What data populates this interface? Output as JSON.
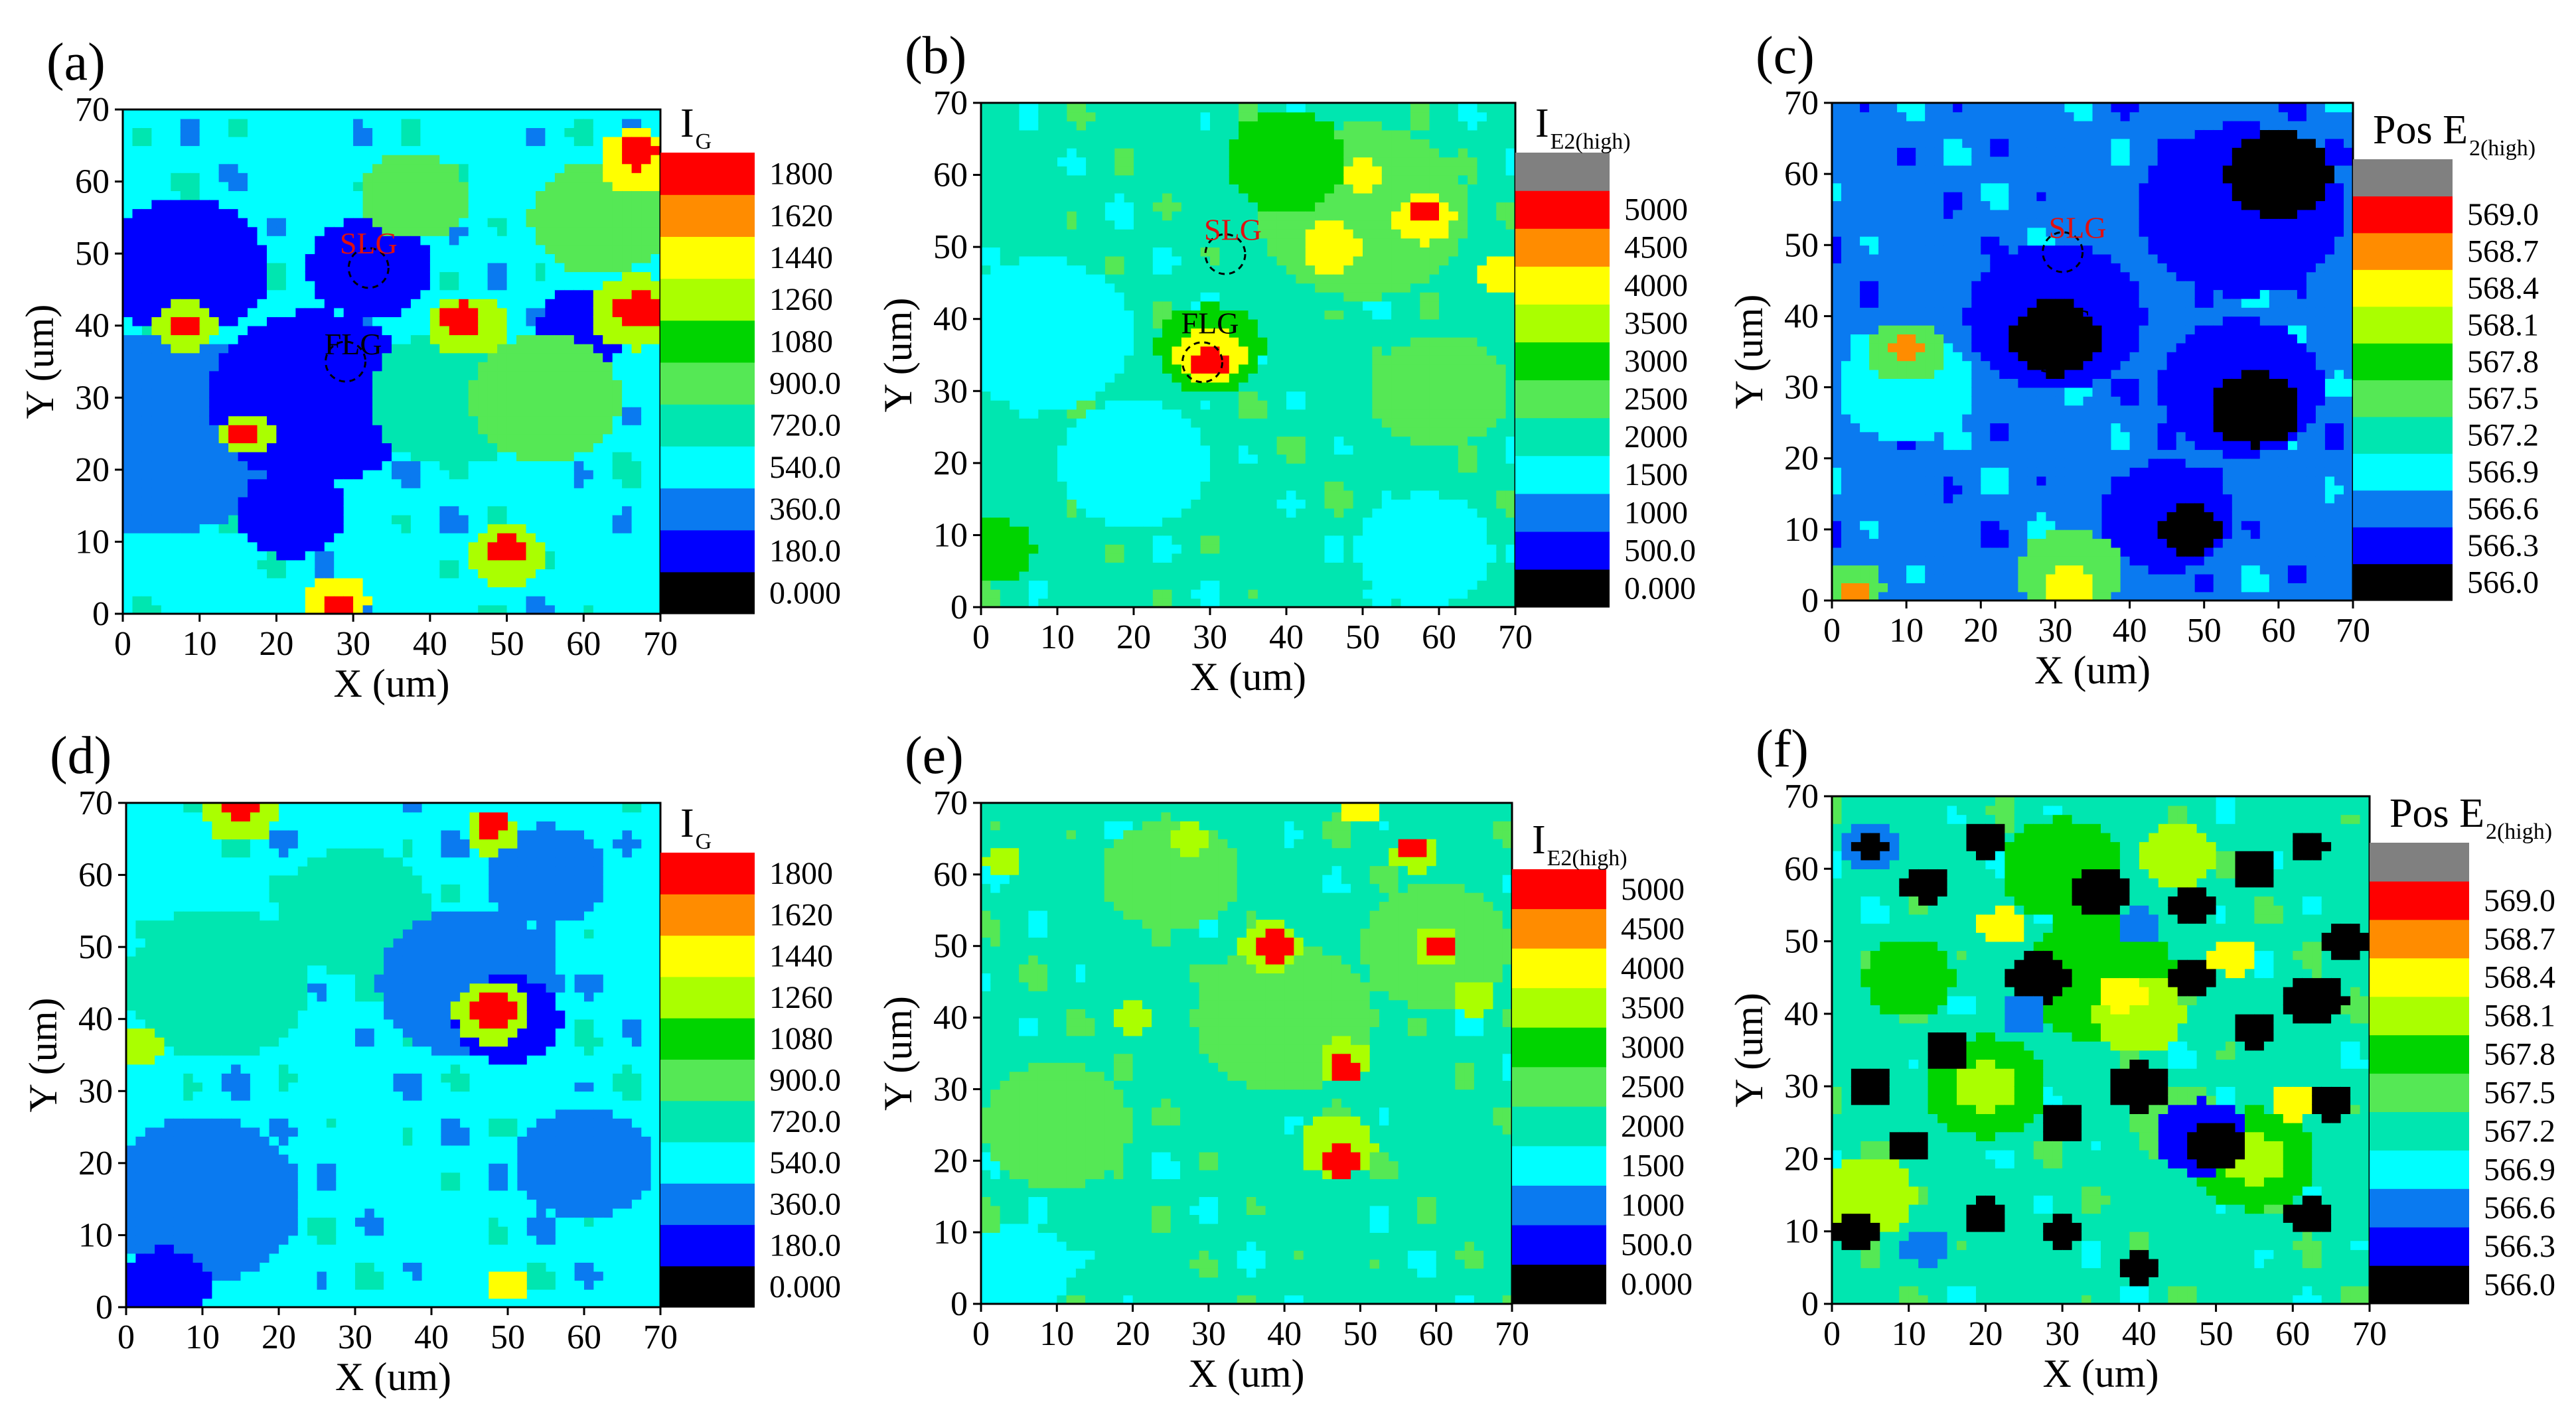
{
  "chart_data": [
    {
      "id": "a",
      "letter": "(a)",
      "type": "heatmap",
      "title_main": "I",
      "title_sub": "G",
      "xlabel": "X (um)",
      "ylabel": "Y (um)",
      "xlim": [
        0,
        70
      ],
      "ylim": [
        0,
        70
      ],
      "x_ticks": [
        "0",
        "10",
        "20",
        "30",
        "40",
        "50",
        "60",
        "70"
      ],
      "y_ticks": [
        "0",
        "10",
        "20",
        "30",
        "40",
        "50",
        "60",
        "70"
      ],
      "colorbar_levels": [
        "0.000",
        "180.0",
        "360.0",
        "540.0",
        "720.0",
        "900.0",
        "1080",
        "1260",
        "1440",
        "1620",
        "1800"
      ],
      "colorbar_has_top_gray": false,
      "base_level": 3,
      "blobs": [
        {
          "x": 5,
          "y": 25,
          "r": 16,
          "lvl": 2
        },
        {
          "x": 25,
          "y": 30,
          "r": 14,
          "lvl": 1
        },
        {
          "x": 8,
          "y": 48,
          "r": 11,
          "lvl": 1
        },
        {
          "x": 32,
          "y": 48,
          "r": 8,
          "lvl": 1
        },
        {
          "x": 22,
          "y": 14,
          "r": 7,
          "lvl": 1
        },
        {
          "x": 60,
          "y": 40,
          "r": 6,
          "lvl": 1
        },
        {
          "x": 43,
          "y": 30,
          "r": 11,
          "lvl": 4
        },
        {
          "x": 55,
          "y": 30,
          "r": 10,
          "lvl": 5
        },
        {
          "x": 62,
          "y": 55,
          "r": 9,
          "lvl": 5
        },
        {
          "x": 38,
          "y": 58,
          "r": 7,
          "lvl": 5
        },
        {
          "x": 45,
          "y": 40,
          "r": 5,
          "lvl": 7
        },
        {
          "x": 44,
          "y": 41,
          "r": 2.5,
          "lvl": 10
        },
        {
          "x": 8,
          "y": 40,
          "r": 4,
          "lvl": 7
        },
        {
          "x": 8,
          "y": 40,
          "r": 2,
          "lvl": 10
        },
        {
          "x": 16,
          "y": 25,
          "r": 3.5,
          "lvl": 7
        },
        {
          "x": 16,
          "y": 25,
          "r": 1.8,
          "lvl": 10
        },
        {
          "x": 67,
          "y": 42,
          "r": 6,
          "lvl": 7
        },
        {
          "x": 67,
          "y": 42,
          "r": 3,
          "lvl": 10
        },
        {
          "x": 67,
          "y": 63,
          "r": 5,
          "lvl": 8
        },
        {
          "x": 67,
          "y": 64,
          "r": 2.5,
          "lvl": 10
        },
        {
          "x": 50,
          "y": 8,
          "r": 5,
          "lvl": 7
        },
        {
          "x": 50,
          "y": 9,
          "r": 2.5,
          "lvl": 10
        },
        {
          "x": 28,
          "y": 2,
          "r": 4,
          "lvl": 8
        },
        {
          "x": 28,
          "y": 1,
          "r": 2,
          "lvl": 10
        }
      ],
      "annotations": [
        {
          "text": "SLG",
          "x": 32,
          "y": 50,
          "color": "#e01010"
        },
        {
          "text": "FLG",
          "x": 30,
          "y": 36,
          "color": "#000000"
        }
      ],
      "circles": [
        {
          "x": 32,
          "y": 48
        },
        {
          "x": 29,
          "y": 35
        }
      ]
    },
    {
      "id": "b",
      "letter": "(b)",
      "type": "heatmap",
      "title_main": "I",
      "title_sub": "E2(high)",
      "xlabel": "X (um)",
      "ylabel": "Y (um)",
      "xlim": [
        0,
        70
      ],
      "ylim": [
        0,
        70
      ],
      "x_ticks": [
        "0",
        "10",
        "20",
        "30",
        "40",
        "50",
        "60",
        "70"
      ],
      "y_ticks": [
        "0",
        "10",
        "20",
        "30",
        "40",
        "50",
        "60",
        "70"
      ],
      "colorbar_levels": [
        "0.000",
        "500.0",
        "1000",
        "1500",
        "2000",
        "2500",
        "3000",
        "3500",
        "4000",
        "4500",
        "5000"
      ],
      "colorbar_has_top_gray": true,
      "base_level": 4,
      "blobs": [
        {
          "x": 8,
          "y": 38,
          "r": 12,
          "lvl": 3
        },
        {
          "x": 20,
          "y": 20,
          "r": 10,
          "lvl": 3
        },
        {
          "x": 58,
          "y": 8,
          "r": 9,
          "lvl": 3
        },
        {
          "x": 50,
          "y": 55,
          "r": 14,
          "lvl": 5
        },
        {
          "x": 40,
          "y": 62,
          "r": 8,
          "lvl": 6
        },
        {
          "x": 60,
          "y": 30,
          "r": 9,
          "lvl": 5
        },
        {
          "x": 2,
          "y": 8,
          "r": 5,
          "lvl": 6
        },
        {
          "x": 30,
          "y": 36,
          "r": 7,
          "lvl": 6
        },
        {
          "x": 30,
          "y": 35,
          "r": 4.5,
          "lvl": 8
        },
        {
          "x": 30,
          "y": 34,
          "r": 2.2,
          "lvl": 10
        },
        {
          "x": 58,
          "y": 54,
          "r": 4,
          "lvl": 8
        },
        {
          "x": 58,
          "y": 55,
          "r": 2,
          "lvl": 10
        },
        {
          "x": 46,
          "y": 50,
          "r": 4,
          "lvl": 8
        },
        {
          "x": 68,
          "y": 46,
          "r": 3,
          "lvl": 8
        },
        {
          "x": 50,
          "y": 60,
          "r": 2.5,
          "lvl": 8
        }
      ],
      "annotations": [
        {
          "text": "SLG",
          "x": 33,
          "y": 51,
          "color": "#e01010"
        },
        {
          "text": "FLG",
          "x": 30,
          "y": 38,
          "color": "#000000"
        }
      ],
      "circles": [
        {
          "x": 32,
          "y": 49
        },
        {
          "x": 29,
          "y": 34
        }
      ]
    },
    {
      "id": "c",
      "letter": "(c)",
      "type": "heatmap",
      "title_main": "Pos E",
      "title_sub": "2(high)",
      "xlabel": "X (um)",
      "ylabel": "Y (um)",
      "xlim": [
        0,
        70
      ],
      "ylim": [
        0,
        70
      ],
      "x_ticks": [
        "0",
        "10",
        "20",
        "30",
        "40",
        "50",
        "60",
        "70"
      ],
      "y_ticks": [
        "0",
        "10",
        "20",
        "30",
        "40",
        "50",
        "60",
        "70"
      ],
      "colorbar_levels": [
        "566.0",
        "566.3",
        "566.6",
        "566.9",
        "567.2",
        "567.5",
        "567.8",
        "568.1",
        "568.4",
        "568.7",
        "569.0"
      ],
      "colorbar_has_top_gray": true,
      "base_level": 2,
      "blobs": [
        {
          "x": 30,
          "y": 40,
          "r": 12,
          "lvl": 1
        },
        {
          "x": 55,
          "y": 55,
          "r": 14,
          "lvl": 1
        },
        {
          "x": 55,
          "y": 30,
          "r": 11,
          "lvl": 1
        },
        {
          "x": 45,
          "y": 12,
          "r": 9,
          "lvl": 1
        },
        {
          "x": 30,
          "y": 37,
          "r": 6,
          "lvl": 0
        },
        {
          "x": 60,
          "y": 60,
          "r": 7,
          "lvl": 0
        },
        {
          "x": 57,
          "y": 27,
          "r": 6,
          "lvl": 0
        },
        {
          "x": 48,
          "y": 10,
          "r": 4,
          "lvl": 0
        },
        {
          "x": 10,
          "y": 30,
          "r": 9,
          "lvl": 3
        },
        {
          "x": 10,
          "y": 35,
          "r": 5,
          "lvl": 5
        },
        {
          "x": 10,
          "y": 36,
          "r": 2,
          "lvl": 9
        },
        {
          "x": 32,
          "y": 4,
          "r": 7,
          "lvl": 5
        },
        {
          "x": 32,
          "y": 2,
          "r": 3.5,
          "lvl": 8
        },
        {
          "x": 3,
          "y": 2,
          "r": 4,
          "lvl": 5
        },
        {
          "x": 3,
          "y": 1,
          "r": 2,
          "lvl": 9
        }
      ],
      "annotations": [
        {
          "text": "SLG",
          "x": 33,
          "y": 51,
          "color": "#e01010"
        },
        {
          "text": "FLG",
          "x": 31,
          "y": 38,
          "color": "#000000"
        }
      ],
      "circles": [
        {
          "x": 31,
          "y": 49
        },
        {
          "x": 29,
          "y": 35
        }
      ]
    },
    {
      "id": "d",
      "letter": "(d)",
      "type": "heatmap",
      "title_main": "I",
      "title_sub": "G",
      "xlabel": "X (um)",
      "ylabel": "Y (um)",
      "xlim": [
        0,
        70
      ],
      "ylim": [
        0,
        70
      ],
      "x_ticks": [
        "0",
        "10",
        "20",
        "30",
        "40",
        "50",
        "60",
        "70"
      ],
      "y_ticks": [
        "0",
        "10",
        "20",
        "30",
        "40",
        "50",
        "60",
        "70"
      ],
      "colorbar_levels": [
        "0.000",
        "180.0",
        "360.0",
        "540.0",
        "720.0",
        "900.0",
        "1080",
        "1260",
        "1440",
        "1620",
        "1800"
      ],
      "colorbar_has_top_gray": false,
      "base_level": 3,
      "blobs": [
        {
          "x": 12,
          "y": 45,
          "r": 12,
          "lvl": 4
        },
        {
          "x": 30,
          "y": 55,
          "r": 10,
          "lvl": 4
        },
        {
          "x": 10,
          "y": 15,
          "r": 13,
          "lvl": 2
        },
        {
          "x": 45,
          "y": 45,
          "r": 12,
          "lvl": 2
        },
        {
          "x": 50,
          "y": 40,
          "r": 7,
          "lvl": 1
        },
        {
          "x": 60,
          "y": 20,
          "r": 9,
          "lvl": 2
        },
        {
          "x": 5,
          "y": 3,
          "r": 6,
          "lvl": 1
        },
        {
          "x": 55,
          "y": 60,
          "r": 8,
          "lvl": 2
        },
        {
          "x": 48,
          "y": 41,
          "r": 5,
          "lvl": 7
        },
        {
          "x": 48,
          "y": 41,
          "r": 3,
          "lvl": 10
        },
        {
          "x": 48,
          "y": 66,
          "r": 3.5,
          "lvl": 7
        },
        {
          "x": 48,
          "y": 67,
          "r": 2,
          "lvl": 10
        },
        {
          "x": 15,
          "y": 69,
          "r": 5,
          "lvl": 7
        },
        {
          "x": 15,
          "y": 70,
          "r": 2.5,
          "lvl": 10
        },
        {
          "x": 50,
          "y": 3,
          "r": 2.5,
          "lvl": 8
        },
        {
          "x": 2,
          "y": 36,
          "r": 3,
          "lvl": 7
        }
      ],
      "annotations": [],
      "circles": []
    },
    {
      "id": "e",
      "letter": "(e)",
      "type": "heatmap",
      "title_main": "I",
      "title_sub": "E2(high)",
      "xlabel": "X (um)",
      "ylabel": "Y (um)",
      "xlim": [
        0,
        70
      ],
      "ylim": [
        0,
        70
      ],
      "x_ticks": [
        "0",
        "10",
        "20",
        "30",
        "40",
        "50",
        "60",
        "70"
      ],
      "y_ticks": [
        "0",
        "10",
        "20",
        "30",
        "40",
        "50",
        "60",
        "70"
      ],
      "colorbar_levels": [
        "0.000",
        "500.0",
        "1000",
        "1500",
        "2000",
        "2500",
        "3000",
        "3500",
        "4000",
        "4500",
        "5000"
      ],
      "colorbar_has_top_gray": false,
      "base_level": 4,
      "blobs": [
        {
          "x": 10,
          "y": 25,
          "r": 10,
          "lvl": 5
        },
        {
          "x": 40,
          "y": 40,
          "r": 12,
          "lvl": 5
        },
        {
          "x": 60,
          "y": 50,
          "r": 10,
          "lvl": 5
        },
        {
          "x": 25,
          "y": 60,
          "r": 9,
          "lvl": 5
        },
        {
          "x": 5,
          "y": 5,
          "r": 7,
          "lvl": 3
        },
        {
          "x": 38,
          "y": 50,
          "r": 4,
          "lvl": 7
        },
        {
          "x": 39,
          "y": 50,
          "r": 2.5,
          "lvl": 10
        },
        {
          "x": 48,
          "y": 34,
          "r": 3.5,
          "lvl": 7
        },
        {
          "x": 48,
          "y": 33,
          "r": 2,
          "lvl": 10
        },
        {
          "x": 47,
          "y": 22,
          "r": 5,
          "lvl": 7
        },
        {
          "x": 48,
          "y": 20,
          "r": 2.5,
          "lvl": 10
        },
        {
          "x": 60,
          "y": 50,
          "r": 3,
          "lvl": 7
        },
        {
          "x": 61,
          "y": 50,
          "r": 1.8,
          "lvl": 10
        },
        {
          "x": 57,
          "y": 63,
          "r": 3,
          "lvl": 7
        },
        {
          "x": 57,
          "y": 64,
          "r": 1.8,
          "lvl": 10
        },
        {
          "x": 65,
          "y": 43,
          "r": 3,
          "lvl": 7
        },
        {
          "x": 20,
          "y": 40,
          "r": 2.5,
          "lvl": 7
        },
        {
          "x": 50,
          "y": 69,
          "r": 2.5,
          "lvl": 8
        },
        {
          "x": 3,
          "y": 62,
          "r": 2.5,
          "lvl": 7
        },
        {
          "x": 28,
          "y": 65,
          "r": 2.5,
          "lvl": 7
        }
      ],
      "annotations": [],
      "circles": []
    },
    {
      "id": "f",
      "letter": "(f)",
      "type": "heatmap",
      "title_main": "Pos E",
      "title_sub": "2(high)",
      "xlabel": "X (um)",
      "ylabel": "Y (um)",
      "xlim": [
        0,
        70
      ],
      "ylim": [
        0,
        70
      ],
      "x_ticks": [
        "0",
        "10",
        "20",
        "30",
        "40",
        "50",
        "60",
        "70"
      ],
      "y_ticks": [
        "0",
        "10",
        "20",
        "30",
        "40",
        "50",
        "60",
        "70"
      ],
      "colorbar_levels": [
        "566.0",
        "566.3",
        "566.6",
        "566.9",
        "567.2",
        "567.5",
        "567.8",
        "568.1",
        "568.4",
        "568.7",
        "569.0"
      ],
      "colorbar_has_top_gray": true,
      "base_level": 4,
      "blobs": [
        {
          "x": 35,
          "y": 45,
          "r": 10,
          "lvl": 6
        },
        {
          "x": 40,
          "y": 40,
          "r": 6,
          "lvl": 7
        },
        {
          "x": 38,
          "y": 43,
          "r": 3,
          "lvl": 8
        },
        {
          "x": 20,
          "y": 30,
          "r": 8,
          "lvl": 6
        },
        {
          "x": 20,
          "y": 30,
          "r": 4,
          "lvl": 7
        },
        {
          "x": 55,
          "y": 20,
          "r": 8,
          "lvl": 6
        },
        {
          "x": 55,
          "y": 20,
          "r": 4,
          "lvl": 7
        },
        {
          "x": 30,
          "y": 60,
          "r": 8,
          "lvl": 6
        },
        {
          "x": 45,
          "y": 62,
          "r": 5,
          "lvl": 7
        },
        {
          "x": 10,
          "y": 45,
          "r": 6,
          "lvl": 6
        },
        {
          "x": 45,
          "y": 25,
          "r": 6,
          "lvl": 5
        },
        {
          "x": 5,
          "y": 15,
          "r": 6,
          "lvl": 7
        },
        {
          "x": 5,
          "y": 63,
          "r": 4,
          "lvl": 2
        },
        {
          "x": 5,
          "y": 63,
          "r": 2,
          "lvl": 0
        },
        {
          "x": 12,
          "y": 58,
          "r": 3,
          "lvl": 0
        },
        {
          "x": 20,
          "y": 64,
          "r": 3,
          "lvl": 0
        },
        {
          "x": 35,
          "y": 57,
          "r": 4,
          "lvl": 0
        },
        {
          "x": 47,
          "y": 55,
          "r": 3,
          "lvl": 0
        },
        {
          "x": 55,
          "y": 60,
          "r": 3,
          "lvl": 0
        },
        {
          "x": 62,
          "y": 63,
          "r": 2.5,
          "lvl": 0
        },
        {
          "x": 27,
          "y": 45,
          "r": 4,
          "lvl": 0
        },
        {
          "x": 47,
          "y": 45,
          "r": 3,
          "lvl": 0
        },
        {
          "x": 55,
          "y": 38,
          "r": 3,
          "lvl": 0
        },
        {
          "x": 63,
          "y": 42,
          "r": 4,
          "lvl": 0
        },
        {
          "x": 67,
          "y": 50,
          "r": 3,
          "lvl": 0
        },
        {
          "x": 40,
          "y": 30,
          "r": 4,
          "lvl": 0
        },
        {
          "x": 48,
          "y": 23,
          "r": 6,
          "lvl": 1
        },
        {
          "x": 50,
          "y": 22,
          "r": 4,
          "lvl": 0
        },
        {
          "x": 30,
          "y": 25,
          "r": 3,
          "lvl": 0
        },
        {
          "x": 15,
          "y": 35,
          "r": 3,
          "lvl": 0
        },
        {
          "x": 5,
          "y": 30,
          "r": 3,
          "lvl": 0
        },
        {
          "x": 3,
          "y": 10,
          "r": 3,
          "lvl": 0
        },
        {
          "x": 20,
          "y": 12,
          "r": 3,
          "lvl": 0
        },
        {
          "x": 10,
          "y": 22,
          "r": 2.5,
          "lvl": 0
        },
        {
          "x": 62,
          "y": 12,
          "r": 3,
          "lvl": 0
        },
        {
          "x": 65,
          "y": 28,
          "r": 3,
          "lvl": 0
        },
        {
          "x": 30,
          "y": 10,
          "r": 2.5,
          "lvl": 0
        },
        {
          "x": 40,
          "y": 5,
          "r": 2.5,
          "lvl": 0
        },
        {
          "x": 22,
          "y": 52,
          "r": 3,
          "lvl": 8
        },
        {
          "x": 52,
          "y": 48,
          "r": 3,
          "lvl": 8
        },
        {
          "x": 60,
          "y": 28,
          "r": 3,
          "lvl": 8
        },
        {
          "x": 25,
          "y": 40,
          "r": 3,
          "lvl": 2
        },
        {
          "x": 40,
          "y": 52,
          "r": 3,
          "lvl": 2
        },
        {
          "x": 12,
          "y": 8,
          "r": 3,
          "lvl": 2
        }
      ],
      "annotations": [],
      "circles": []
    }
  ],
  "palette": {
    "levels": [
      "#000000",
      "#0000ff",
      "#0a7af0",
      "#00ffff",
      "#00e6b0",
      "#55e855",
      "#00d400",
      "#aaff00",
      "#ffff00",
      "#ff8c00",
      "#ff0000"
    ],
    "top_gray": "#808080"
  }
}
